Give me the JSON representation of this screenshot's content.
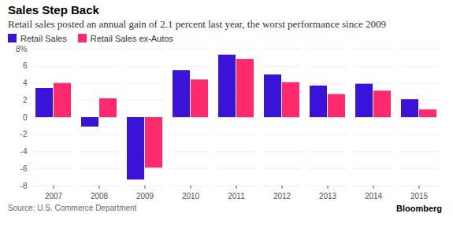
{
  "chart_data": {
    "type": "bar",
    "title": "Sales Step Back",
    "subtitle": "Retail sales posted an annual gain of 2.1 percent last year, the worst performance since 2009",
    "source": "Source: U.S. Commerce Department",
    "credit": "Bloomberg",
    "categories": [
      "2007",
      "2008",
      "2009",
      "2010",
      "2011",
      "2012",
      "2013",
      "2014",
      "2015"
    ],
    "series": [
      {
        "name": "Retail Sales",
        "color": "#3b12d9",
        "values": [
          3.4,
          -1.1,
          -7.3,
          5.5,
          7.3,
          5.0,
          3.7,
          3.9,
          2.1
        ]
      },
      {
        "name": "Retail Sales ex-Autos",
        "color": "#ff2a6d",
        "values": [
          4.0,
          2.2,
          -5.9,
          4.4,
          6.8,
          4.1,
          2.7,
          3.1,
          0.9
        ]
      }
    ],
    "ylim": [
      -8,
      8
    ],
    "yticks": [
      -8,
      -6,
      -4,
      -2,
      0,
      2,
      4,
      6,
      {
        "value": 8,
        "label": "8%"
      }
    ],
    "grid": true,
    "legend": "top-left"
  }
}
